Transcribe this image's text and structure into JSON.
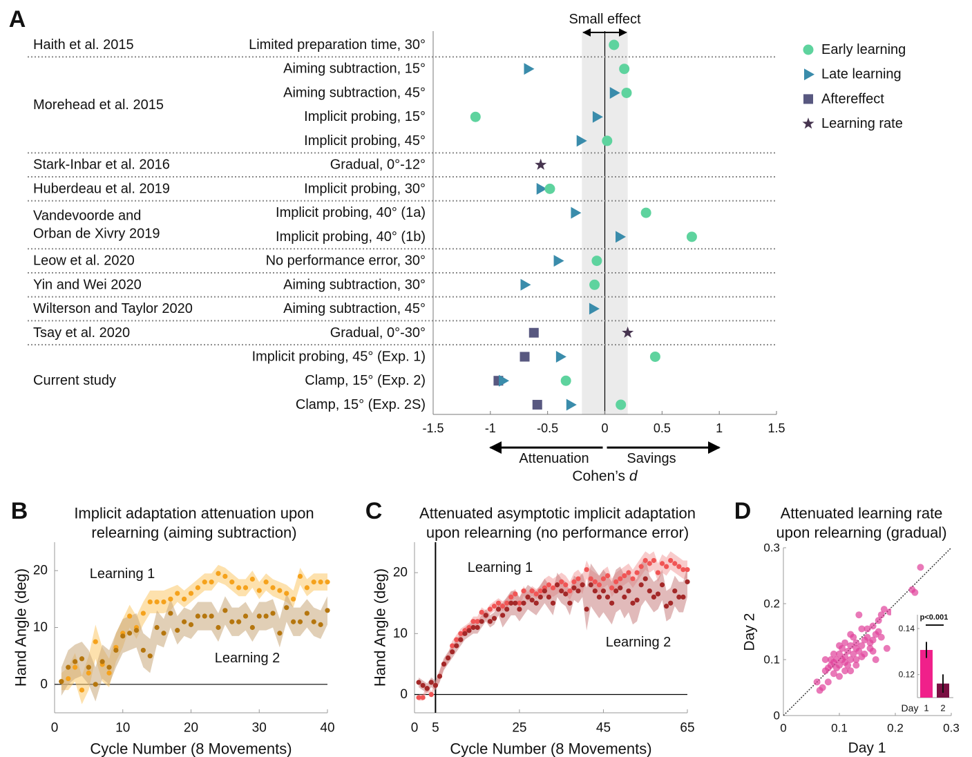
{
  "chart_data": [
    {
      "type": "forest",
      "panel_label": "A",
      "annotation": "Small effect",
      "effect_band": [
        -0.2,
        0.2
      ],
      "studies": [
        {
          "name": [
            "Haith et al. 2015"
          ],
          "conditions": [
            "Limited preparation time, 30°"
          ]
        },
        {
          "name": [
            "Morehead et al. 2015"
          ],
          "conditions": [
            "Aiming subtraction, 15°",
            "Aiming subtraction, 45°",
            "Implicit probing, 15°",
            "Implicit probing, 45°"
          ]
        },
        {
          "name": [
            "Stark-Inbar et al. 2016"
          ],
          "conditions": [
            "Gradual, 0°-12°"
          ]
        },
        {
          "name": [
            "Huberdeau et al. 2019"
          ],
          "conditions": [
            "Implicit probing, 30°"
          ]
        },
        {
          "name": [
            "Vandevoorde and",
            "Orban de Xivry 2019"
          ],
          "conditions": [
            "Implicit probing, 40° (1a)",
            "Implicit probing, 40° (1b)"
          ]
        },
        {
          "name": [
            "Leow et al. 2020"
          ],
          "conditions": [
            "No performance error, 30°"
          ]
        },
        {
          "name": [
            "Yin and Wei 2020"
          ],
          "conditions": [
            "Aiming subtraction, 30°"
          ]
        },
        {
          "name": [
            "Wilterson and Taylor 2020"
          ],
          "conditions": [
            "Aiming subtraction, 45°"
          ]
        },
        {
          "name": [
            "Tsay et al. 2020"
          ],
          "conditions": [
            "Gradual, 0°-30°"
          ]
        },
        {
          "name": [
            "Current study"
          ],
          "conditions": [
            "Implicit probing, 45° (Exp. 1)",
            "Clamp, 15° (Exp. 2)",
            "Clamp, 15° (Exp. 2S)"
          ]
        }
      ],
      "series": [
        {
          "name": "Aftereffect",
          "color": "#585880",
          "marker": "square",
          "values": [
            null,
            null,
            null,
            null,
            null,
            null,
            null,
            null,
            null,
            null,
            null,
            null,
            -0.62,
            -0.7,
            -0.93,
            -0.59
          ]
        },
        {
          "name": "Late learning",
          "color": "#3a8cab",
          "marker": "triangle",
          "values": [
            null,
            -0.67,
            0.08,
            -0.07,
            -0.21,
            null,
            -0.56,
            -0.26,
            0.13,
            -0.41,
            -0.7,
            -0.1,
            null,
            -0.39,
            -0.89,
            -0.3
          ]
        },
        {
          "name": "Early learning",
          "color": "#5ed39e",
          "marker": "circle",
          "values": [
            0.08,
            0.17,
            0.19,
            -1.13,
            0.02,
            null,
            -0.48,
            0.36,
            0.76,
            -0.07,
            -0.09,
            null,
            null,
            0.44,
            -0.34,
            0.14
          ]
        },
        {
          "name": "Learning rate",
          "color": "#46344f",
          "marker": "star",
          "values": [
            null,
            null,
            null,
            null,
            null,
            -0.56,
            null,
            null,
            null,
            null,
            null,
            null,
            0.2,
            null,
            null,
            null
          ]
        }
      ],
      "legend_order": [
        "Early learning",
        "Late learning",
        "Aftereffect",
        "Learning rate"
      ],
      "xlim": [
        -1.5,
        1.5
      ],
      "xticks": [
        -1.5,
        -1,
        -0.5,
        0,
        0.5,
        1,
        1.5
      ],
      "arrow_labels": [
        "Attenuation",
        "Savings"
      ],
      "xlabel": "Cohen’s",
      "xlabel_symbol": "d"
    },
    {
      "type": "line",
      "panel_label": "B",
      "title": [
        "Implicit adaptation attenuation upon",
        "relearning (aiming subtraction)"
      ],
      "xlabel": "Cycle Number (8 Movements)",
      "ylabel": "Hand Angle (deg)",
      "xlim": [
        0,
        40
      ],
      "ylim": [
        -5,
        25
      ],
      "xticks": [
        0,
        10,
        20,
        30,
        40
      ],
      "yticks": [
        0,
        10,
        20
      ],
      "x": [
        1,
        2,
        3,
        4,
        5,
        6,
        7,
        8,
        9,
        10,
        11,
        12,
        13,
        14,
        15,
        16,
        17,
        18,
        19,
        20,
        21,
        22,
        23,
        24,
        25,
        26,
        27,
        28,
        29,
        30,
        31,
        32,
        33,
        34,
        35,
        36,
        37,
        38,
        39,
        40
      ],
      "series": [
        {
          "name": "Learning 1",
          "color": "#f5a21c",
          "band_color": "#fbc86a",
          "values": [
            0.5,
            1,
            3,
            -1,
            2,
            7.5,
            3.5,
            2,
            6.5,
            9,
            12,
            10,
            12.5,
            14.5,
            14.5,
            14.5,
            15,
            16,
            15,
            16,
            17,
            18,
            18,
            19.5,
            19,
            18,
            17,
            17,
            18.5,
            16.5,
            18,
            17,
            16.5,
            16,
            15,
            19,
            17,
            18,
            18,
            18
          ],
          "errors": [
            1.5,
            2,
            2.5,
            2.5,
            3,
            3,
            3,
            2.5,
            2.5,
            2.5,
            2,
            2,
            2,
            2,
            2,
            2,
            2,
            1.5,
            1.5,
            1.5,
            1.5,
            1.5,
            1.5,
            1.5,
            1.5,
            1.5,
            1.5,
            1.5,
            1.5,
            1.5,
            1.5,
            1.5,
            1.5,
            1.5,
            1.5,
            1.5,
            1.5,
            1.5,
            1.5,
            1.5
          ]
        },
        {
          "name": "Learning 2",
          "color": "#b5760e",
          "band_color": "#c9a77a",
          "values": [
            0.5,
            3,
            4,
            4.5,
            3,
            0,
            4,
            3,
            6,
            8.5,
            9,
            9.5,
            6,
            5,
            10,
            9,
            12.5,
            9.5,
            11,
            10.5,
            12,
            12,
            12,
            10,
            13,
            11,
            11,
            12,
            10,
            12,
            12,
            12.5,
            9,
            13.5,
            11,
            11,
            12.5,
            11,
            10.5,
            13
          ],
          "errors": [
            2.5,
            3,
            3,
            3,
            3,
            3,
            3,
            3,
            3,
            3,
            3,
            3,
            3,
            3,
            3,
            2.5,
            2.5,
            2.5,
            2.5,
            2.5,
            2.5,
            2.5,
            2.5,
            2.5,
            2.5,
            2.5,
            2.5,
            2.5,
            2.5,
            2.5,
            2.5,
            2.5,
            2.5,
            2.5,
            2.5,
            2.5,
            2.5,
            2.5,
            2.5,
            2.5
          ]
        }
      ]
    },
    {
      "type": "line",
      "panel_label": "C",
      "title": [
        "Attenuated asymptotic implicit adaptation",
        "upon relearning (no performance error)"
      ],
      "xlabel": "Cycle Number (8 Movements)",
      "ylabel": "Hand Angle (deg)",
      "xlim": [
        0,
        65
      ],
      "ylim": [
        -3,
        25
      ],
      "xticks": [
        0,
        5,
        25,
        45,
        65
      ],
      "yticks": [
        0,
        10,
        20
      ],
      "vline": 5,
      "x": [
        1,
        2,
        3,
        4,
        5,
        6,
        7,
        8,
        9,
        10,
        11,
        12,
        13,
        14,
        15,
        16,
        17,
        18,
        19,
        20,
        21,
        22,
        23,
        24,
        25,
        26,
        27,
        28,
        29,
        30,
        31,
        32,
        33,
        34,
        35,
        36,
        37,
        38,
        39,
        40,
        41,
        42,
        43,
        44,
        45,
        46,
        47,
        48,
        49,
        50,
        51,
        52,
        53,
        54,
        55,
        56,
        57,
        58,
        59,
        60,
        61,
        62,
        63,
        64,
        65
      ],
      "series": [
        {
          "name": "Learning 1",
          "color": "#f05555",
          "band_color": "#f3a0a0",
          "values": [
            -0.5,
            -0.5,
            1,
            0,
            1.5,
            3,
            5,
            6,
            8,
            9,
            10,
            10.5,
            11,
            12,
            12,
            13.5,
            13,
            14,
            14.5,
            15,
            14.5,
            15,
            16,
            16.5,
            15,
            17,
            16,
            17,
            16.5,
            17,
            17.5,
            18,
            17.5,
            18,
            18.5,
            18,
            17,
            18.5,
            19,
            18,
            20.5,
            19,
            18.5,
            18,
            19,
            19.5,
            17.5,
            18.5,
            19,
            19.5,
            20,
            19,
            20,
            21,
            22,
            21.5,
            22,
            20,
            21.5,
            21,
            22,
            21.5,
            21,
            20.5,
            20.5
          ],
          "errors": [
            0.5,
            0.5,
            0.5,
            0.5,
            0.5,
            0.8,
            0.8,
            0.8,
            0.8,
            0.8,
            0.8,
            0.8,
            0.8,
            0.8,
            0.8,
            0.8,
            0.8,
            0.8,
            0.8,
            0.8,
            0.8,
            0.8,
            0.8,
            0.8,
            0.8,
            0.8,
            0.8,
            0.8,
            0.8,
            0.8,
            1.5,
            1.5,
            1.5,
            1.5,
            1.5,
            1.5,
            1.5,
            1.5,
            1.5,
            1.5,
            1.5,
            1.5,
            1.5,
            1.5,
            1.5,
            1.5,
            1.5,
            1.5,
            1.5,
            1.5,
            1.5,
            1.5,
            1.5,
            1.5,
            1.5,
            1.5,
            1.5,
            1.5,
            1.5,
            1.5,
            1.5,
            1.5,
            1.5,
            1.5,
            1.5
          ]
        },
        {
          "name": "Learning 2",
          "color": "#a32828",
          "band_color": "#c98282",
          "values": [
            2,
            1.5,
            1,
            2,
            1.5,
            3,
            5,
            6,
            7,
            8,
            9,
            10,
            10.5,
            11,
            11,
            12,
            13,
            12,
            12.5,
            14,
            13,
            14,
            15,
            15,
            14,
            15,
            16,
            15.5,
            15,
            16,
            17,
            16,
            15,
            18,
            17,
            16.5,
            15,
            17.5,
            17,
            18,
            14,
            18,
            17,
            16,
            17,
            16,
            15,
            17,
            17.5,
            16,
            17,
            15,
            15.5,
            18,
            19,
            17,
            16,
            16.5,
            18,
            14.5,
            15,
            17,
            16,
            16,
            18.5
          ],
          "errors": [
            0.8,
            0.8,
            0.8,
            0.8,
            0.8,
            1,
            1,
            1,
            1,
            1,
            1,
            1,
            1,
            1,
            1,
            1,
            1,
            1,
            1,
            1,
            2,
            2,
            2,
            2,
            2,
            2,
            2,
            2,
            2,
            2,
            2,
            2,
            2,
            2,
            2,
            2,
            2,
            2,
            2,
            2,
            3.5,
            3.5,
            3.5,
            3.5,
            3.5,
            3.5,
            3.5,
            3.5,
            3.5,
            3.5,
            3.5,
            3.5,
            3.5,
            3.5,
            3.5,
            2.5,
            2.5,
            2.5,
            2.5,
            2.5,
            2.5,
            2.5,
            2.5,
            2.5,
            2.5
          ]
        }
      ]
    },
    {
      "type": "scatter",
      "panel_label": "D",
      "title": [
        "Attenuated learning rate",
        "upon relearning (gradual)"
      ],
      "xlabel": "Day 1",
      "ylabel": "Day 2",
      "color": "#e0409a",
      "identity_line": true,
      "xlim": [
        0,
        0.3
      ],
      "ylim": [
        0,
        0.3
      ],
      "xticks": [
        0,
        0.1,
        0.2,
        0.3
      ],
      "yticks": [
        0,
        0.1,
        0.2,
        0.3
      ],
      "x": [
        0.065,
        0.07,
        0.075,
        0.08,
        0.08,
        0.085,
        0.085,
        0.09,
        0.09,
        0.095,
        0.095,
        0.1,
        0.1,
        0.1,
        0.105,
        0.105,
        0.11,
        0.11,
        0.11,
        0.115,
        0.115,
        0.12,
        0.12,
        0.12,
        0.125,
        0.125,
        0.13,
        0.13,
        0.13,
        0.135,
        0.135,
        0.14,
        0.14,
        0.145,
        0.145,
        0.15,
        0.15,
        0.155,
        0.155,
        0.16,
        0.16,
        0.165,
        0.165,
        0.17,
        0.17,
        0.175,
        0.175,
        0.18,
        0.185,
        0.19,
        0.2,
        0.205,
        0.21,
        0.215,
        0.22,
        0.23,
        0.235,
        0.24,
        0.245,
        0.1,
        0.09,
        0.075,
        0.12,
        0.14,
        0.11,
        0.13,
        0.06,
        0.16
      ],
      "y": [
        0.045,
        0.05,
        0.08,
        0.085,
        0.06,
        0.09,
        0.1,
        0.075,
        0.095,
        0.1,
        0.085,
        0.11,
        0.09,
        0.07,
        0.12,
        0.1,
        0.105,
        0.095,
        0.13,
        0.115,
        0.09,
        0.1,
        0.125,
        0.08,
        0.11,
        0.14,
        0.12,
        0.1,
        0.13,
        0.115,
        0.18,
        0.125,
        0.105,
        0.135,
        0.11,
        0.14,
        0.155,
        0.12,
        0.13,
        0.16,
        0.135,
        0.145,
        0.1,
        0.15,
        0.17,
        0.14,
        0.18,
        0.19,
        0.12,
        0.185,
        0.13,
        0.16,
        0.15,
        0.14,
        0.1,
        0.225,
        0.22,
        0.185,
        0.265,
        0.125,
        0.11,
        0.1,
        0.145,
        0.155,
        0.08,
        0.09,
        0.06,
        0.115
      ]
    },
    {
      "type": "bar",
      "xlabel": "Day",
      "categories": [
        "1",
        "2"
      ],
      "values": [
        0.1307,
        0.1161
      ],
      "errors": [
        0.0035,
        0.004
      ],
      "colors": [
        "#f0208a",
        "#7a1042"
      ],
      "annotation": "p<0.001",
      "ylim": [
        0.11,
        0.146
      ],
      "yticks": [
        0.12,
        0.14
      ]
    }
  ]
}
